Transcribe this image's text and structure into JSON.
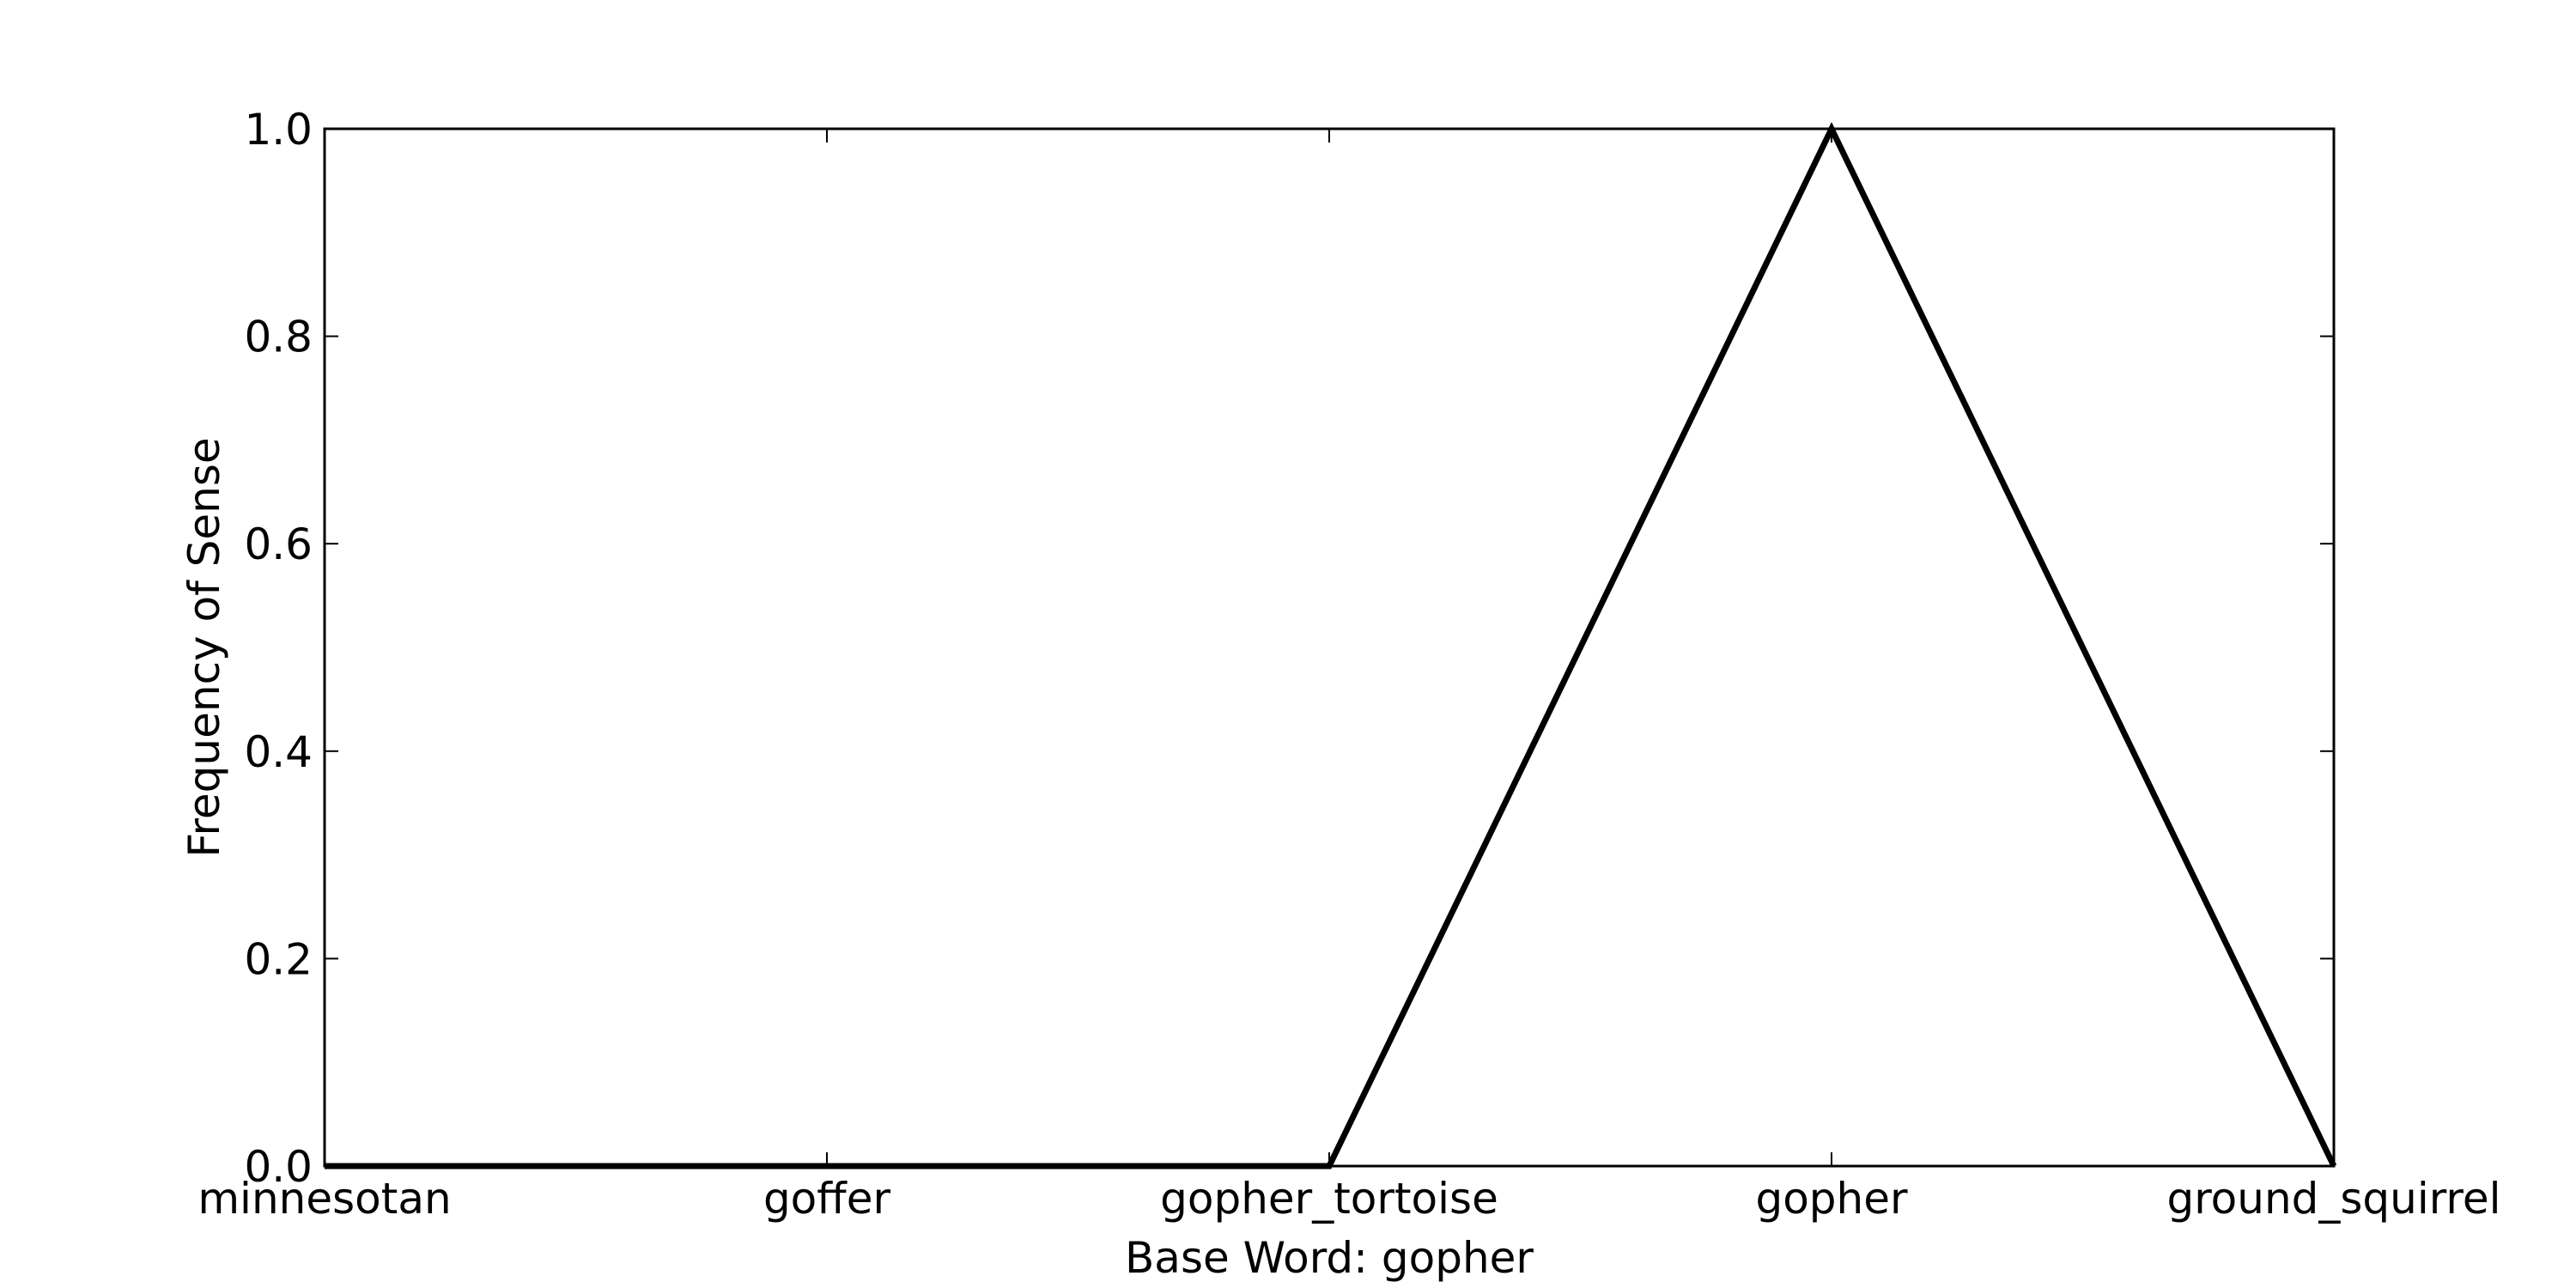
{
  "chart_data": {
    "type": "line",
    "categories": [
      "minnesotan",
      "goffer",
      "gopher_tortoise",
      "gopher",
      "ground_squirrel"
    ],
    "series": [
      {
        "values": [
          0.0,
          0.0,
          0.0,
          1.0,
          0.0
        ]
      }
    ],
    "xlabel": "Base Word: gopher",
    "ylabel": "Frequency of Sense",
    "ylim": [
      0.0,
      1.0
    ],
    "yticks": [
      "0.0",
      "0.2",
      "0.4",
      "0.6",
      "0.8",
      "1.0"
    ],
    "grid": false,
    "line_color": "#000000"
  }
}
